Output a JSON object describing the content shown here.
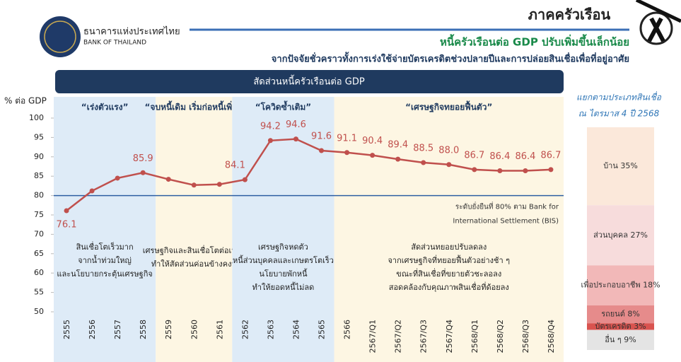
{
  "header": {
    "section": "ภาคครัวเรือน",
    "org_th": "ธนาคารแห่งประเทศไทย",
    "org_en": "BANK OF THAILAND",
    "headline": "หนี้ครัวเรือนต่อ GDP ปรับเพิ่มขึ้นเล็กน้อย",
    "subheadline": "จากปัจจัยชั่วคราวทั้งการเร่งใช้จ่ายบัตรเครดิตช่วงปลายปีและการปล่อยสินเชื่อเพื่อที่อยู่อาศัย"
  },
  "chart_data": [
    {
      "type": "line",
      "title": "สัดส่วนหนี้ครัวเรือนต่อ GDP",
      "y_label": "% ต่อ GDP",
      "categories": [
        "2555",
        "2556",
        "2557",
        "2558",
        "2559",
        "2560",
        "2561",
        "2562",
        "2563",
        "2564",
        "2565",
        "2566",
        "2567/Q1",
        "2567/Q2",
        "2567/Q3",
        "2567/Q4",
        "2568/Q1",
        "2568/Q2",
        "2568/Q3",
        "2568/Q4"
      ],
      "values": [
        76.1,
        81.2,
        84.5,
        85.9,
        84.2,
        82.7,
        82.9,
        84.1,
        94.2,
        94.6,
        91.6,
        91.1,
        90.4,
        89.4,
        88.5,
        88.0,
        86.7,
        86.4,
        86.4,
        86.7
      ],
      "value_labels": [
        "76.1",
        null,
        null,
        "85.9",
        null,
        null,
        null,
        "84.1",
        "94.2",
        "94.6",
        "91.6",
        "91.1",
        "90.4",
        "89.4",
        "88.5",
        "88.0",
        "86.7",
        "86.4",
        "86.4",
        "86.7"
      ],
      "color": "#c0504d",
      "ylim": [
        50,
        100
      ],
      "yticks": [
        50,
        55,
        60,
        65,
        70,
        75,
        80,
        85,
        90,
        95,
        100
      ],
      "grid": false,
      "reference": {
        "value": 80,
        "color": "#2e5fa3",
        "label_lines": [
          "ระดับยั่งยืนที่ 80% ตาม Bank for",
          "International Settlement (BIS)"
        ]
      },
      "phases": [
        {
          "title": "“เร่งตัวแรง”",
          "start": "2555",
          "end": "2558",
          "color": "#deebf7",
          "notes": [
            "สินเชื่อโตเร็วมาก",
            "จากน้ำท่วมใหญ่",
            "และนโยบายกระตุ้นเศรษฐกิจ"
          ]
        },
        {
          "title": "“จบหนี้เดิม เริ่มก่อหนี้เพิ่ม”",
          "start": "2559",
          "end": "2561",
          "color": "#fdf6e3",
          "notes": [
            "เศรษฐกิจและสินเชื่อโตต่อเนื่อง",
            "ทำให้สัดส่วนค่อนข้างคงที่"
          ]
        },
        {
          "title": "“โควิดซ้ำเติม”",
          "start": "2562",
          "end": "2565",
          "color": "#deebf7",
          "notes": [
            "เศรษฐกิจหดตัว",
            "หนี้ส่วนบุคคลและเกษตรโตเร็ว",
            "นโยบายพักหนี้",
            "ทำให้ยอดหนี้ไม่ลด"
          ]
        },
        {
          "title": "“เศรษฐกิจทยอยฟื้นตัว”",
          "start": "2566",
          "end": "2568/Q4",
          "color": "#fdf6e3",
          "notes": [
            "สัดส่วนทยอยปรับลดลง",
            "จากเศรษฐกิจที่ทยอยฟื้นตัวอย่างช้า ๆ",
            "ขณะที่สินเชื่อที่ขยายตัวชะลอลง",
            "สอดคล้องกับคุณภาพสินเชื่อที่ด้อยลง"
          ]
        }
      ]
    },
    {
      "type": "stacked_bar",
      "title": "แยกตามประเภทสินเชื่อ",
      "subtitle": "ณ ไตรมาส 4 ปี 2568",
      "segments": [
        {
          "value": 35,
          "label": "บ้าน 35%",
          "color": "#fbe8da"
        },
        {
          "value": 27,
          "label": "ส่วนบุคคล 27%",
          "color": "#f7dcdc"
        },
        {
          "value": 18,
          "label": "เพื่อประกอบอาชีพ 18%",
          "color": "#f2b8b8"
        },
        {
          "value": 8,
          "label": "รถยนต์ 8%",
          "color": "#e68b8b"
        },
        {
          "value": 3,
          "label": "บัตรเครดิต 3%",
          "color": "#d9534f"
        },
        {
          "value": 9,
          "label": "อื่น ๆ 9%",
          "color": "#e4e4e4"
        }
      ]
    }
  ]
}
